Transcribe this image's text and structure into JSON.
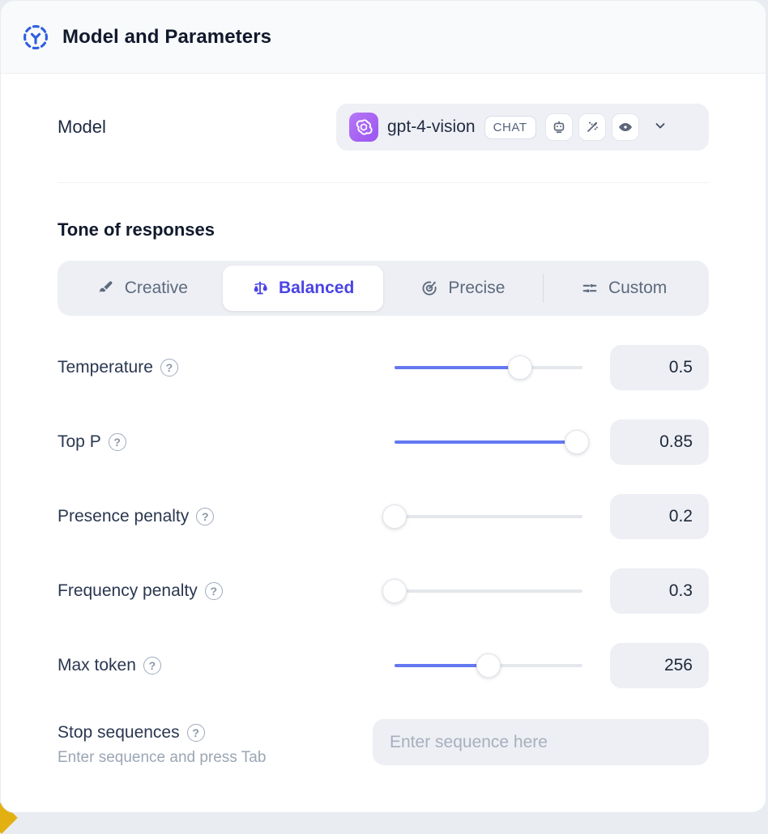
{
  "header": {
    "title": "Model and Parameters"
  },
  "model_row": {
    "label": "Model",
    "selected_model": "gpt-4-vision",
    "type_badge": "CHAT",
    "capability_icons": [
      "robot-icon",
      "magic-wand-icon",
      "vision-eye-icon"
    ]
  },
  "tone": {
    "heading": "Tone of responses",
    "options": [
      {
        "label": "Creative",
        "icon": "paintbrush-icon",
        "selected": false
      },
      {
        "label": "Balanced",
        "icon": "balance-scale-icon",
        "selected": true
      },
      {
        "label": "Precise",
        "icon": "target-icon",
        "selected": false
      },
      {
        "label": "Custom",
        "icon": "sliders-icon",
        "selected": false
      }
    ]
  },
  "parameters": [
    {
      "label": "Temperature",
      "value": "0.5",
      "slider_percent": 67
    },
    {
      "label": "Top P",
      "value": "0.85",
      "slider_percent": 97
    },
    {
      "label": "Presence penalty",
      "value": "0.2",
      "slider_percent": 0
    },
    {
      "label": "Frequency penalty",
      "value": "0.3",
      "slider_percent": 0
    },
    {
      "label": "Max token",
      "value": "256",
      "slider_percent": 50
    }
  ],
  "stop_sequences": {
    "label": "Stop sequences",
    "hint": "Enter sequence and press Tab",
    "placeholder": "Enter sequence here"
  },
  "colors": {
    "accent_slider_blue": "#6478f2",
    "selected_tab_indigo": "#4a43e4",
    "header_icon_blue": "#2e5ee0",
    "openai_logo_purple": "#a55ef0",
    "field_background": "#edeff4",
    "header_background": "#f8fafc",
    "corner_accent_yellow": "#e3b012"
  }
}
